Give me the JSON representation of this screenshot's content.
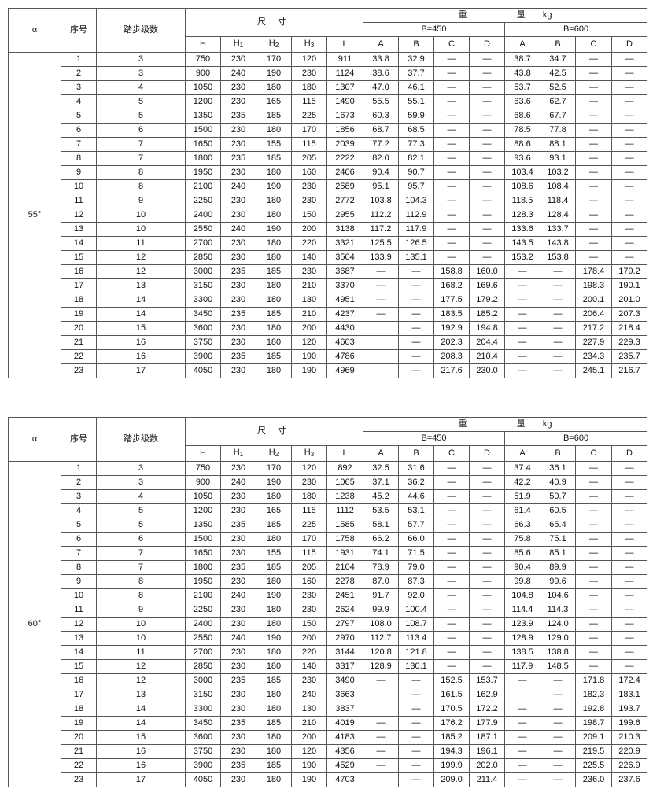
{
  "headers": {
    "alpha": "α",
    "serial": "序号",
    "steps": "踏步级数",
    "dimensions": "尺 寸",
    "weight": "重 量",
    "weight_unit": "kg",
    "dim_cols": [
      "H",
      "H1",
      "H2",
      "H3",
      "L"
    ],
    "b450": "B=450",
    "b600": "B=600",
    "weight_cols": [
      "A",
      "B",
      "C",
      "D",
      "A",
      "B",
      "C",
      "D"
    ]
  },
  "tables": [
    {
      "alpha": "55°",
      "rows": [
        [
          "1",
          "3",
          "750",
          "230",
          "170",
          "120",
          "911",
          "33.8",
          "32.9",
          "—",
          "—",
          "38.7",
          "34.7",
          "—",
          "—"
        ],
        [
          "2",
          "3",
          "900",
          "240",
          "190",
          "230",
          "1124",
          "38.6",
          "37.7",
          "—",
          "—",
          "43.8",
          "42.5",
          "—",
          "—"
        ],
        [
          "3",
          "4",
          "1050",
          "230",
          "180",
          "180",
          "1307",
          "47.0",
          "46.1",
          "—",
          "—",
          "53.7",
          "52.5",
          "—",
          "—"
        ],
        [
          "4",
          "5",
          "1200",
          "230",
          "165",
          "115",
          "1490",
          "55.5",
          "55.1",
          "—",
          "—",
          "63.6",
          "62.7",
          "—",
          "—"
        ],
        [
          "5",
          "5",
          "1350",
          "235",
          "185",
          "225",
          "1673",
          "60.3",
          "59.9",
          "—",
          "—",
          "68.6",
          "67.7",
          "—",
          "—"
        ],
        [
          "6",
          "6",
          "1500",
          "230",
          "180",
          "170",
          "1856",
          "68.7",
          "68.5",
          "—",
          "—",
          "78.5",
          "77.8",
          "—",
          "—"
        ],
        [
          "7",
          "7",
          "1650",
          "230",
          "155",
          "115",
          "2039",
          "77.2",
          "77.3",
          "—",
          "—",
          "88.6",
          "88.1",
          "—",
          "—"
        ],
        [
          "8",
          "7",
          "1800",
          "235",
          "185",
          "205",
          "2222",
          "82.0",
          "82.1",
          "—",
          "—",
          "93.6",
          "93.1",
          "—",
          "—"
        ],
        [
          "9",
          "8",
          "1950",
          "230",
          "180",
          "160",
          "2406",
          "90.4",
          "90.7",
          "—",
          "—",
          "103.4",
          "103.2",
          "—",
          "—"
        ],
        [
          "10",
          "8",
          "2100",
          "240",
          "190",
          "230",
          "2589",
          "95.1",
          "95.7",
          "—",
          "—",
          "108.6",
          "108.4",
          "—",
          "—"
        ],
        [
          "11",
          "9",
          "2250",
          "230",
          "180",
          "230",
          "2772",
          "103.8",
          "104.3",
          "—",
          "—",
          "118.5",
          "118.4",
          "—",
          "—"
        ],
        [
          "12",
          "10",
          "2400",
          "230",
          "180",
          "150",
          "2955",
          "112.2",
          "112.9",
          "—",
          "—",
          "128.3",
          "128.4",
          "—",
          "—"
        ],
        [
          "13",
          "10",
          "2550",
          "240",
          "190",
          "200",
          "3138",
          "117.2",
          "117.9",
          "—",
          "—",
          "133.6",
          "133.7",
          "—",
          "—"
        ],
        [
          "14",
          "11",
          "2700",
          "230",
          "180",
          "220",
          "3321",
          "125.5",
          "126.5",
          "—",
          "—",
          "143.5",
          "143.8",
          "—",
          "—"
        ],
        [
          "15",
          "12",
          "2850",
          "230",
          "180",
          "140",
          "3504",
          "133.9",
          "135.1",
          "—",
          "—",
          "153.2",
          "153.8",
          "—",
          "—"
        ],
        [
          "16",
          "12",
          "3000",
          "235",
          "185",
          "230",
          "3687",
          "—",
          "—",
          "158.8",
          "160.0",
          "—",
          "—",
          "178.4",
          "179.2"
        ],
        [
          "17",
          "13",
          "3150",
          "230",
          "180",
          "210",
          "3370",
          "—",
          "—",
          "168.2",
          "169.6",
          "—",
          "—",
          "198.3",
          "190.1"
        ],
        [
          "18",
          "14",
          "3300",
          "230",
          "180",
          "130",
          "4951",
          "—",
          "—",
          "177.5",
          "179.2",
          "—",
          "—",
          "200.1",
          "201.0"
        ],
        [
          "19",
          "14",
          "3450",
          "235",
          "185",
          "210",
          "4237",
          "—",
          "—",
          "183.5",
          "185.2",
          "—",
          "—",
          "206.4",
          "207.3"
        ],
        [
          "20",
          "15",
          "3600",
          "230",
          "180",
          "200",
          "4430",
          "",
          "—",
          "192.9",
          "194.8",
          "—",
          "—",
          "217.2",
          "218.4"
        ],
        [
          "21",
          "16",
          "3750",
          "230",
          "180",
          "120",
          "4603",
          "",
          "—",
          "202.3",
          "204.4",
          "—",
          "—",
          "227.9",
          "229.3"
        ],
        [
          "22",
          "16",
          "3900",
          "235",
          "185",
          "190",
          "4786",
          "",
          "—",
          "208.3",
          "210.4",
          "—",
          "—",
          "234.3",
          "235.7"
        ],
        [
          "23",
          "17",
          "4050",
          "230",
          "180",
          "190",
          "4969",
          "",
          "—",
          "217.6",
          "230.0",
          "—",
          "—",
          "245.1",
          "216.7"
        ]
      ]
    },
    {
      "alpha": "60°",
      "rows": [
        [
          "1",
          "3",
          "750",
          "230",
          "170",
          "120",
          "892",
          "32.5",
          "31.6",
          "—",
          "—",
          "37.4",
          "36.1",
          "—",
          "—"
        ],
        [
          "2",
          "3",
          "900",
          "240",
          "190",
          "230",
          "1065",
          "37.1",
          "36.2",
          "—",
          "—",
          "42.2",
          "40.9",
          "—",
          "—"
        ],
        [
          "3",
          "4",
          "1050",
          "230",
          "180",
          "180",
          "1238",
          "45.2",
          "44.6",
          "—",
          "—",
          "51.9",
          "50.7",
          "—",
          "—"
        ],
        [
          "4",
          "5",
          "1200",
          "230",
          "165",
          "115",
          "1112",
          "53.5",
          "53.1",
          "—",
          "—",
          "61.4",
          "60.5",
          "—",
          "—"
        ],
        [
          "5",
          "5",
          "1350",
          "235",
          "185",
          "225",
          "1585",
          "58.1",
          "57.7",
          "—",
          "—",
          "66.3",
          "65.4",
          "—",
          "—"
        ],
        [
          "6",
          "6",
          "1500",
          "230",
          "180",
          "170",
          "1758",
          "66.2",
          "66.0",
          "—",
          "—",
          "75.8",
          "75.1",
          "—",
          "—"
        ],
        [
          "7",
          "7",
          "1650",
          "230",
          "155",
          "115",
          "1931",
          "74.1",
          "71.5",
          "—",
          "—",
          "85.6",
          "85.1",
          "—",
          "—"
        ],
        [
          "8",
          "7",
          "1800",
          "235",
          "185",
          "205",
          "2104",
          "78.9",
          "79.0",
          "—",
          "—",
          "90.4",
          "89.9",
          "—",
          "—"
        ],
        [
          "9",
          "8",
          "1950",
          "230",
          "180",
          "160",
          "2278",
          "87.0",
          "87.3",
          "—",
          "—",
          "99.8",
          "99.6",
          "—",
          "—"
        ],
        [
          "10",
          "8",
          "2100",
          "240",
          "190",
          "230",
          "2451",
          "91.7",
          "92.0",
          "—",
          "—",
          "104.8",
          "104.6",
          "—",
          "—"
        ],
        [
          "11",
          "9",
          "2250",
          "230",
          "180",
          "230",
          "2624",
          "99.9",
          "100.4",
          "—",
          "—",
          "114.4",
          "114.3",
          "—",
          "—"
        ],
        [
          "12",
          "10",
          "2400",
          "230",
          "180",
          "150",
          "2797",
          "108.0",
          "108.7",
          "—",
          "—",
          "123.9",
          "124.0",
          "—",
          "—"
        ],
        [
          "13",
          "10",
          "2550",
          "240",
          "190",
          "200",
          "2970",
          "112.7",
          "113.4",
          "—",
          "—",
          "128.9",
          "129.0",
          "—",
          "—"
        ],
        [
          "14",
          "11",
          "2700",
          "230",
          "180",
          "220",
          "3144",
          "120.8",
          "121.8",
          "—",
          "—",
          "138.5",
          "138.8",
          "—",
          "—"
        ],
        [
          "15",
          "12",
          "2850",
          "230",
          "180",
          "140",
          "3317",
          "128.9",
          "130.1",
          "—",
          "—",
          "117.9",
          "148.5",
          "—",
          "—"
        ],
        [
          "16",
          "12",
          "3000",
          "235",
          "185",
          "230",
          "3490",
          "—",
          "—",
          "152.5",
          "153.7",
          "—",
          "—",
          "171.8",
          "172.4"
        ],
        [
          "17",
          "13",
          "3150",
          "230",
          "180",
          "240",
          "3663",
          "",
          "—",
          "161.5",
          "162.9",
          "",
          "—",
          "182.3",
          "183.1"
        ],
        [
          "18",
          "14",
          "3300",
          "230",
          "180",
          "130",
          "3837",
          "",
          "—",
          "170.5",
          "172.2",
          "—",
          "—",
          "192.8",
          "193.7"
        ],
        [
          "19",
          "14",
          "3450",
          "235",
          "185",
          "210",
          "4019",
          "—",
          "—",
          "176.2",
          "177.9",
          "—",
          "—",
          "198.7",
          "199.6"
        ],
        [
          "20",
          "15",
          "3600",
          "230",
          "180",
          "200",
          "4183",
          "—",
          "—",
          "185.2",
          "187.1",
          "—",
          "—",
          "209.1",
          "210.3"
        ],
        [
          "21",
          "16",
          "3750",
          "230",
          "180",
          "120",
          "4356",
          "—",
          "—",
          "194.3",
          "196.1",
          "—",
          "—",
          "219.5",
          "220.9"
        ],
        [
          "22",
          "16",
          "3900",
          "235",
          "185",
          "190",
          "4529",
          "—",
          "—",
          "199.9",
          "202.0",
          "—",
          "—",
          "225.5",
          "226.9"
        ],
        [
          "23",
          "17",
          "4050",
          "230",
          "180",
          "190",
          "4703",
          "",
          "—",
          "209.0",
          "211.4",
          "—",
          "—",
          "236.0",
          "237.6"
        ]
      ]
    }
  ]
}
